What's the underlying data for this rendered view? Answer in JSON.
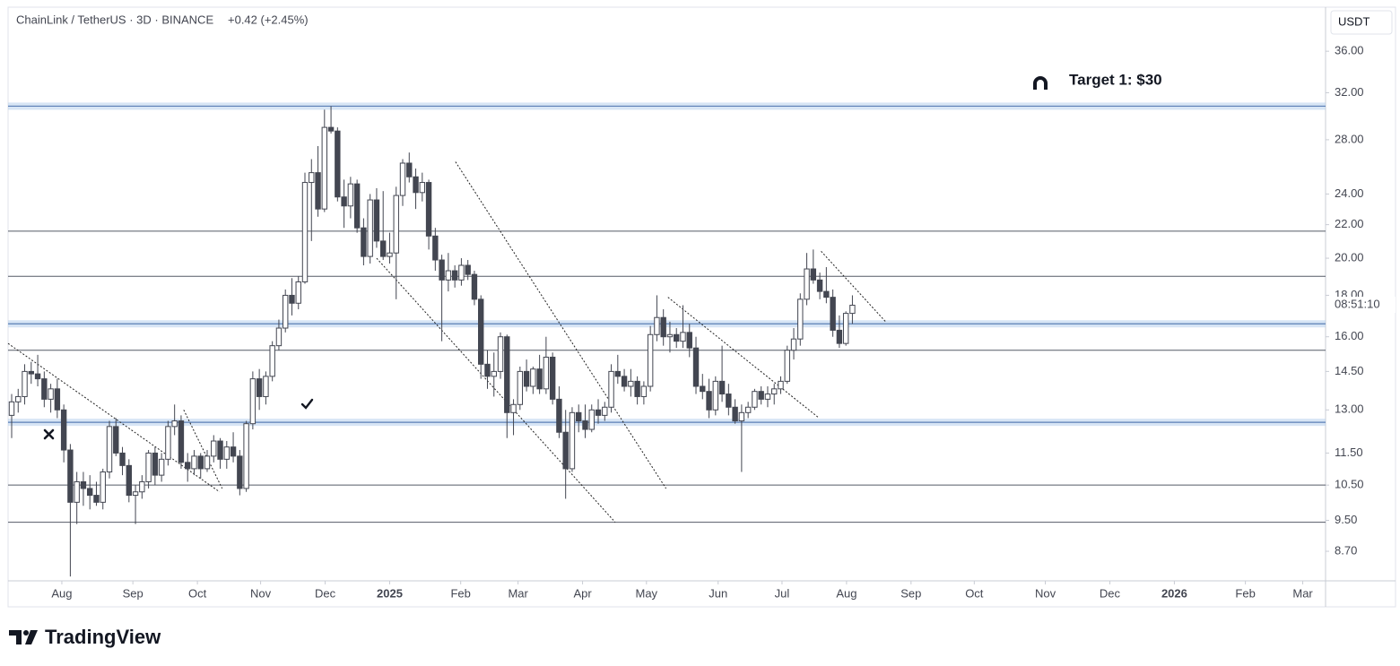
{
  "chart_data": {
    "type": "candlestick",
    "title": "ChainLink / TetherUS · 3D · BINANCE",
    "change": "+0.42 (+2.45%)",
    "y_axis_unit": "USDT",
    "countdown": "08:51:10",
    "annotation": "Target 1: $30",
    "brand": "TradingView",
    "log_scale": true,
    "up_color": "#ffffff",
    "down_color": "#434651",
    "wick_color": "#434651",
    "band_color": "#bcd3ee",
    "line_color": "#555a66",
    "trend_color": "#222222",
    "ylim": [
      8.0,
      40.8
    ],
    "xlim": [
      -0.55,
      201.6
    ],
    "yticks": [
      {
        "value": 36,
        "label": "36.00"
      },
      {
        "value": 32,
        "label": "32.00"
      },
      {
        "value": 28,
        "label": "28.00"
      },
      {
        "value": 24,
        "label": "24.00"
      },
      {
        "value": 22,
        "label": "22.00"
      },
      {
        "value": 20,
        "label": "20.00"
      },
      {
        "value": 18,
        "label": "18.00"
      },
      {
        "value": 16,
        "label": "16.00"
      },
      {
        "value": 14.5,
        "label": "14.50"
      },
      {
        "value": 13,
        "label": "13.00"
      },
      {
        "value": 11.5,
        "label": "11.50"
      },
      {
        "value": 10.5,
        "label": "10.50"
      },
      {
        "value": 9.5,
        "label": "9.50"
      },
      {
        "value": 8.7,
        "label": "8.70"
      }
    ],
    "xticks": [
      {
        "value": 7.7,
        "label": "Aug"
      },
      {
        "value": 18.6,
        "label": "Sep"
      },
      {
        "value": 28.5,
        "label": "Oct"
      },
      {
        "value": 38.2,
        "label": "Nov"
      },
      {
        "value": 48.1,
        "label": "Dec"
      },
      {
        "value": 58.0,
        "label": "2025"
      },
      {
        "value": 68.9,
        "label": "Feb"
      },
      {
        "value": 77.7,
        "label": "Mar"
      },
      {
        "value": 87.6,
        "label": "Apr"
      },
      {
        "value": 97.4,
        "label": "May"
      },
      {
        "value": 108.4,
        "label": "Jun"
      },
      {
        "value": 118.2,
        "label": "Jul"
      },
      {
        "value": 128.1,
        "label": "Aug"
      },
      {
        "value": 138.0,
        "label": "Sep"
      },
      {
        "value": 147.7,
        "label": "Oct"
      },
      {
        "value": 158.6,
        "label": "Nov"
      },
      {
        "value": 168.5,
        "label": "Dec"
      },
      {
        "value": 178.4,
        "label": "2026"
      },
      {
        "value": 189.3,
        "label": "Feb"
      },
      {
        "value": 198.1,
        "label": "Mar"
      }
    ],
    "bands": [
      30.8,
      16.6,
      12.55
    ],
    "levels": [
      21.6,
      19.0,
      15.4,
      10.5,
      9.45
    ],
    "trendlines": [
      {
        "from": [
          -0.55,
          15.7
        ],
        "to": [
          31.9,
          10.3
        ]
      },
      {
        "from": [
          26.4,
          13.0
        ],
        "to": [
          32.3,
          10.4
        ]
      },
      {
        "from": [
          56.0,
          20.0
        ],
        "to": [
          92.6,
          9.45
        ]
      },
      {
        "from": [
          68.1,
          26.3
        ],
        "to": [
          100.4,
          10.4
        ]
      },
      {
        "from": [
          100.7,
          17.9
        ],
        "to": [
          123.9,
          12.7
        ]
      },
      {
        "from": [
          124.2,
          20.4
        ],
        "to": [
          134.1,
          16.7
        ]
      }
    ],
    "candles": [
      [
        12.8,
        13.6,
        12.0,
        13.3
      ],
      [
        13.3,
        13.8,
        12.9,
        13.5
      ],
      [
        13.5,
        14.8,
        13.2,
        14.5
      ],
      [
        14.5,
        14.9,
        14.0,
        14.4
      ],
      [
        14.4,
        15.2,
        13.9,
        14.2
      ],
      [
        14.2,
        14.5,
        13.1,
        13.4
      ],
      [
        13.4,
        14.0,
        12.9,
        13.8
      ],
      [
        13.8,
        14.2,
        12.7,
        13.0
      ],
      [
        13.0,
        13.2,
        11.2,
        11.6
      ],
      [
        11.6,
        11.8,
        8.1,
        10.0
      ],
      [
        10.0,
        10.9,
        9.4,
        10.6
      ],
      [
        10.6,
        10.9,
        9.9,
        10.4
      ],
      [
        10.4,
        10.8,
        9.8,
        10.2
      ],
      [
        10.2,
        10.6,
        9.9,
        10.0
      ],
      [
        10.0,
        11.0,
        9.8,
        10.9
      ],
      [
        10.9,
        12.6,
        10.7,
        12.4
      ],
      [
        12.4,
        12.7,
        11.4,
        11.5
      ],
      [
        11.5,
        11.7,
        10.8,
        11.1
      ],
      [
        11.1,
        11.3,
        10.0,
        10.2
      ],
      [
        10.2,
        10.5,
        9.4,
        10.3
      ],
      [
        10.3,
        10.8,
        10.1,
        10.6
      ],
      [
        10.6,
        11.6,
        10.4,
        11.5
      ],
      [
        11.5,
        11.7,
        10.5,
        10.8
      ],
      [
        10.8,
        11.5,
        10.6,
        11.3
      ],
      [
        11.3,
        12.6,
        11.1,
        12.4
      ],
      [
        12.4,
        13.2,
        12.1,
        12.6
      ],
      [
        12.6,
        12.8,
        11.0,
        11.2
      ],
      [
        11.2,
        11.5,
        10.6,
        11.0
      ],
      [
        11.0,
        11.6,
        10.8,
        11.4
      ],
      [
        11.4,
        11.5,
        10.7,
        11.0
      ],
      [
        11.0,
        11.6,
        10.9,
        11.4
      ],
      [
        11.4,
        12.1,
        11.2,
        11.9
      ],
      [
        11.9,
        12.0,
        11.0,
        11.3
      ],
      [
        11.3,
        11.9,
        11.0,
        11.7
      ],
      [
        11.7,
        12.2,
        11.2,
        11.4
      ],
      [
        11.4,
        11.6,
        10.2,
        10.4
      ],
      [
        10.4,
        12.6,
        10.3,
        12.5
      ],
      [
        12.5,
        14.5,
        12.3,
        14.2
      ],
      [
        14.2,
        14.6,
        13.0,
        13.5
      ],
      [
        13.5,
        14.5,
        13.2,
        14.3
      ],
      [
        14.3,
        15.8,
        14.1,
        15.6
      ],
      [
        15.6,
        16.8,
        15.4,
        16.4
      ],
      [
        16.4,
        18.3,
        16.2,
        18.0
      ],
      [
        18.0,
        18.9,
        17.0,
        17.6
      ],
      [
        17.6,
        19.0,
        17.3,
        18.7
      ],
      [
        18.7,
        25.5,
        18.6,
        24.8
      ],
      [
        24.8,
        26.5,
        21.0,
        25.5
      ],
      [
        25.5,
        27.5,
        22.5,
        23.0
      ],
      [
        23.0,
        30.5,
        22.8,
        29.0
      ],
      [
        29.0,
        30.8,
        28.5,
        28.7
      ],
      [
        28.7,
        29.0,
        23.5,
        23.8
      ],
      [
        23.8,
        25.0,
        21.8,
        23.2
      ],
      [
        23.2,
        25.2,
        22.4,
        24.7
      ],
      [
        24.7,
        25.0,
        21.5,
        21.8
      ],
      [
        21.8,
        22.4,
        19.6,
        20.1
      ],
      [
        20.1,
        24.0,
        19.7,
        23.6
      ],
      [
        23.6,
        24.4,
        20.6,
        21.0
      ],
      [
        21.0,
        24.2,
        19.9,
        20.1
      ],
      [
        20.1,
        21.5,
        19.7,
        20.3
      ],
      [
        20.3,
        24.5,
        17.8,
        23.9
      ],
      [
        23.9,
        26.5,
        23.2,
        26.2
      ],
      [
        26.2,
        27.0,
        24.8,
        25.2
      ],
      [
        25.2,
        25.8,
        23.0,
        24.1
      ],
      [
        24.1,
        25.5,
        23.5,
        24.8
      ],
      [
        24.8,
        25.0,
        20.5,
        21.3
      ],
      [
        21.3,
        21.8,
        19.3,
        19.9
      ],
      [
        19.9,
        20.2,
        15.8,
        18.8
      ],
      [
        18.8,
        20.3,
        18.2,
        19.3
      ],
      [
        19.3,
        19.6,
        18.4,
        18.8
      ],
      [
        18.8,
        20.0,
        18.5,
        19.6
      ],
      [
        19.6,
        19.9,
        18.8,
        19.1
      ],
      [
        19.1,
        19.3,
        17.5,
        17.8
      ],
      [
        17.8,
        18.0,
        14.2,
        14.8
      ],
      [
        14.8,
        15.4,
        13.8,
        14.3
      ],
      [
        14.3,
        15.3,
        13.5,
        14.5
      ],
      [
        14.5,
        16.2,
        14.2,
        16.0
      ],
      [
        16.0,
        16.1,
        12.0,
        12.9
      ],
      [
        12.9,
        13.4,
        12.1,
        13.2
      ],
      [
        13.2,
        14.7,
        13.0,
        14.5
      ],
      [
        14.5,
        15.0,
        13.7,
        13.9
      ],
      [
        13.9,
        14.7,
        13.6,
        14.6
      ],
      [
        14.6,
        15.2,
        13.6,
        13.8
      ],
      [
        13.8,
        16.0,
        13.6,
        15.1
      ],
      [
        15.1,
        15.3,
        13.2,
        13.4
      ],
      [
        13.4,
        13.9,
        12.0,
        12.2
      ],
      [
        12.2,
        13.0,
        10.1,
        11.0
      ],
      [
        11.0,
        13.1,
        10.9,
        12.9
      ],
      [
        12.9,
        13.2,
        12.2,
        12.6
      ],
      [
        12.6,
        13.2,
        12.0,
        12.3
      ],
      [
        12.3,
        13.2,
        12.2,
        13.0
      ],
      [
        13.0,
        13.4,
        12.5,
        12.8
      ],
      [
        12.8,
        13.3,
        12.6,
        13.1
      ],
      [
        13.1,
        14.8,
        12.9,
        14.5
      ],
      [
        14.5,
        15.2,
        14.0,
        14.3
      ],
      [
        14.3,
        14.6,
        13.7,
        13.9
      ],
      [
        13.9,
        14.6,
        13.5,
        14.1
      ],
      [
        14.1,
        14.3,
        13.2,
        13.5
      ],
      [
        13.5,
        14.1,
        13.2,
        13.9
      ],
      [
        13.9,
        16.5,
        13.7,
        16.1
      ],
      [
        16.1,
        18.0,
        15.8,
        16.9
      ],
      [
        16.9,
        17.3,
        15.6,
        16.0
      ],
      [
        16.0,
        16.7,
        15.3,
        16.1
      ],
      [
        16.1,
        16.4,
        15.5,
        15.8
      ],
      [
        15.8,
        17.5,
        15.5,
        16.2
      ],
      [
        16.2,
        16.6,
        15.1,
        15.5
      ],
      [
        15.5,
        16.0,
        13.6,
        13.9
      ],
      [
        13.9,
        14.4,
        13.4,
        13.7
      ],
      [
        13.7,
        14.2,
        12.7,
        13.0
      ],
      [
        13.0,
        14.3,
        12.8,
        14.1
      ],
      [
        14.1,
        15.6,
        13.3,
        13.6
      ],
      [
        13.6,
        14.0,
        12.8,
        13.1
      ],
      [
        13.1,
        13.4,
        12.5,
        12.6
      ],
      [
        12.6,
        13.2,
        10.9,
        12.9
      ],
      [
        12.9,
        13.3,
        12.7,
        13.1
      ],
      [
        13.1,
        13.8,
        13.0,
        13.7
      ],
      [
        13.7,
        13.9,
        13.2,
        13.4
      ],
      [
        13.4,
        13.9,
        13.1,
        13.6
      ],
      [
        13.6,
        14.0,
        13.2,
        13.8
      ],
      [
        13.8,
        14.3,
        13.6,
        14.1
      ],
      [
        14.1,
        15.6,
        14.0,
        15.4
      ],
      [
        15.4,
        16.4,
        15.0,
        15.9
      ],
      [
        15.9,
        18.1,
        15.6,
        17.8
      ],
      [
        17.8,
        20.3,
        17.5,
        19.4
      ],
      [
        19.4,
        20.5,
        18.6,
        18.8
      ],
      [
        18.8,
        19.2,
        17.8,
        18.2
      ],
      [
        18.2,
        19.5,
        17.6,
        17.9
      ],
      [
        17.9,
        18.3,
        16.0,
        16.3
      ],
      [
        16.3,
        17.0,
        15.5,
        15.7
      ],
      [
        15.7,
        17.2,
        15.6,
        17.1
      ],
      [
        17.1,
        18.0,
        16.6,
        17.5
      ]
    ]
  }
}
